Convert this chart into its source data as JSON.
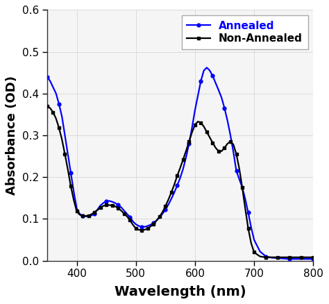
{
  "xlabel": "Wavelength (nm)",
  "ylabel": "Absorbance (OD)",
  "xlim": [
    350,
    800
  ],
  "ylim": [
    0,
    0.6
  ],
  "xticks": [
    400,
    500,
    600,
    700,
    800
  ],
  "yticks": [
    0,
    0.1,
    0.2,
    0.3,
    0.4,
    0.5,
    0.6
  ],
  "annealed_color": "#0000ff",
  "non_annealed_color": "#000000",
  "annealed_x": [
    350,
    355,
    360,
    365,
    370,
    375,
    380,
    385,
    390,
    395,
    400,
    405,
    410,
    415,
    420,
    425,
    430,
    435,
    440,
    445,
    450,
    455,
    460,
    465,
    470,
    475,
    480,
    485,
    490,
    495,
    500,
    505,
    510,
    515,
    520,
    525,
    530,
    535,
    540,
    545,
    550,
    555,
    560,
    565,
    570,
    575,
    580,
    585,
    590,
    595,
    600,
    605,
    610,
    615,
    620,
    625,
    630,
    635,
    640,
    645,
    650,
    655,
    660,
    665,
    670,
    675,
    680,
    685,
    690,
    695,
    700,
    710,
    720,
    730,
    740,
    750,
    760,
    770,
    780,
    790,
    800
  ],
  "annealed_y": [
    0.44,
    0.43,
    0.415,
    0.4,
    0.375,
    0.345,
    0.3,
    0.255,
    0.21,
    0.165,
    0.125,
    0.112,
    0.107,
    0.106,
    0.106,
    0.108,
    0.113,
    0.122,
    0.132,
    0.138,
    0.142,
    0.143,
    0.141,
    0.138,
    0.133,
    0.128,
    0.12,
    0.112,
    0.104,
    0.094,
    0.087,
    0.083,
    0.081,
    0.081,
    0.083,
    0.086,
    0.09,
    0.096,
    0.103,
    0.112,
    0.122,
    0.134,
    0.148,
    0.163,
    0.18,
    0.198,
    0.22,
    0.248,
    0.28,
    0.318,
    0.36,
    0.395,
    0.43,
    0.455,
    0.462,
    0.455,
    0.442,
    0.425,
    0.408,
    0.39,
    0.365,
    0.335,
    0.3,
    0.26,
    0.215,
    0.195,
    0.175,
    0.148,
    0.115,
    0.08,
    0.05,
    0.022,
    0.01,
    0.007,
    0.006,
    0.005,
    0.004,
    0.004,
    0.004,
    0.004,
    0.004
  ],
  "non_annealed_x": [
    350,
    355,
    360,
    365,
    370,
    375,
    380,
    385,
    390,
    395,
    400,
    405,
    410,
    415,
    420,
    425,
    430,
    435,
    440,
    445,
    450,
    455,
    460,
    465,
    470,
    475,
    480,
    485,
    490,
    495,
    500,
    505,
    510,
    515,
    520,
    525,
    530,
    535,
    540,
    545,
    550,
    555,
    560,
    565,
    570,
    575,
    580,
    585,
    590,
    595,
    600,
    605,
    610,
    615,
    620,
    625,
    630,
    635,
    640,
    645,
    650,
    655,
    660,
    665,
    670,
    675,
    680,
    685,
    690,
    695,
    700,
    710,
    720,
    730,
    740,
    750,
    760,
    770,
    780,
    790,
    800
  ],
  "non_annealed_y": [
    0.37,
    0.365,
    0.355,
    0.34,
    0.318,
    0.29,
    0.255,
    0.218,
    0.178,
    0.145,
    0.118,
    0.11,
    0.107,
    0.107,
    0.108,
    0.111,
    0.116,
    0.121,
    0.127,
    0.131,
    0.133,
    0.133,
    0.132,
    0.13,
    0.126,
    0.12,
    0.113,
    0.106,
    0.097,
    0.086,
    0.077,
    0.074,
    0.073,
    0.074,
    0.077,
    0.082,
    0.088,
    0.096,
    0.105,
    0.116,
    0.13,
    0.146,
    0.163,
    0.182,
    0.203,
    0.222,
    0.242,
    0.263,
    0.285,
    0.307,
    0.325,
    0.333,
    0.33,
    0.321,
    0.308,
    0.295,
    0.282,
    0.27,
    0.262,
    0.262,
    0.27,
    0.28,
    0.285,
    0.278,
    0.255,
    0.22,
    0.175,
    0.125,
    0.078,
    0.042,
    0.02,
    0.01,
    0.008,
    0.008,
    0.008,
    0.008,
    0.008,
    0.008,
    0.008,
    0.008,
    0.008
  ],
  "legend_labels": [
    "Annealed",
    "Non-Annealed"
  ],
  "legend_loc": "upper right",
  "figsize": [
    4.74,
    4.38
  ],
  "dpi": 100,
  "bg_color": "#ffffff",
  "plot_bg_color": "#f5f5f5"
}
